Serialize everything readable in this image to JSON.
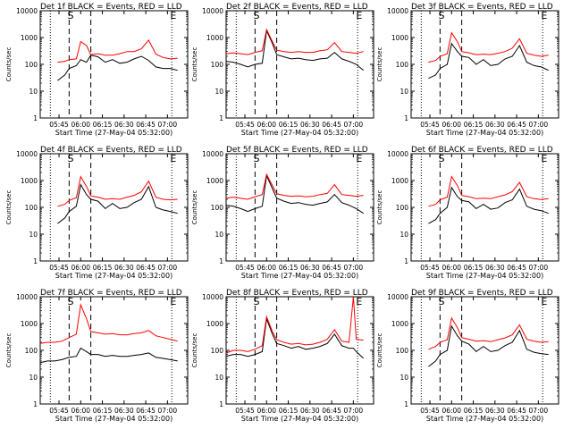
{
  "shared": {
    "ylabel": "Counts/sec",
    "xlabel": "Start Time (27-May-04 05:32:00)",
    "yticks": [
      {
        "value": 1,
        "label": "1"
      },
      {
        "value": 10,
        "label": "10"
      },
      {
        "value": 100,
        "label": "100"
      },
      {
        "value": 1000,
        "label": "1000"
      },
      {
        "value": 10000,
        "label": "10000"
      }
    ],
    "xticks": [
      {
        "value": 13,
        "label": "05:45"
      },
      {
        "value": 28,
        "label": "06:00"
      },
      {
        "value": 43,
        "label": "06:15"
      },
      {
        "value": 58,
        "label": "06:30"
      },
      {
        "value": 73,
        "label": "06:45"
      },
      {
        "value": 88,
        "label": "07:00"
      }
    ],
    "dotted_lines": [
      7,
      91
    ],
    "dashed_lines": [
      20,
      35
    ],
    "markers": [
      {
        "x": 21,
        "label": "S"
      },
      {
        "x": 92,
        "label": "E"
      }
    ],
    "colors": {
      "events": "#000000",
      "lld": "#ff0000",
      "axis": "#000000"
    }
  },
  "chart_data": [
    {
      "type": "line",
      "title": "Det 1f BLACK = Events, RED = LLD",
      "x_range_minutes": [
        0,
        102
      ],
      "ylim": [
        1,
        10000
      ],
      "yscale": "log",
      "x": [
        0,
        7,
        12,
        17,
        20,
        25,
        28,
        32,
        35,
        40,
        45,
        50,
        55,
        60,
        65,
        70,
        75,
        80,
        85,
        90,
        95
      ],
      "series": [
        {
          "name": "Events",
          "values": [
            null,
            null,
            25,
            40,
            70,
            90,
            150,
            120,
            220,
            190,
            120,
            150,
            110,
            120,
            160,
            200,
            140,
            80,
            70,
            70,
            60
          ]
        },
        {
          "name": "LLD",
          "values": [
            null,
            null,
            120,
            130,
            150,
            160,
            700,
            500,
            230,
            250,
            220,
            220,
            250,
            300,
            300,
            380,
            800,
            240,
            180,
            160,
            170
          ]
        }
      ]
    },
    {
      "type": "line",
      "title": "Det 2f BLACK = Events, RED = LLD",
      "x_range_minutes": [
        0,
        102
      ],
      "ylim": [
        1,
        10000
      ],
      "yscale": "log",
      "x": [
        0,
        5,
        10,
        15,
        20,
        25,
        28,
        32,
        35,
        40,
        45,
        50,
        55,
        60,
        65,
        70,
        75,
        80,
        85,
        90,
        95
      ],
      "series": [
        {
          "name": "Events",
          "values": [
            130,
            120,
            100,
            80,
            100,
            110,
            1800,
            600,
            230,
            190,
            160,
            170,
            150,
            140,
            160,
            170,
            280,
            160,
            130,
            100,
            60
          ]
        },
        {
          "name": "LLD",
          "values": [
            250,
            270,
            250,
            230,
            280,
            320,
            2000,
            700,
            340,
            300,
            280,
            300,
            280,
            280,
            320,
            350,
            650,
            300,
            280,
            260,
            300
          ]
        }
      ]
    },
    {
      "type": "line",
      "title": "Det 3f BLACK = Events, RED = LLD",
      "x_range_minutes": [
        0,
        102
      ],
      "ylim": [
        1,
        10000
      ],
      "yscale": "log",
      "x": [
        0,
        7,
        12,
        17,
        20,
        25,
        28,
        32,
        35,
        40,
        45,
        50,
        55,
        60,
        65,
        70,
        75,
        80,
        85,
        90,
        95
      ],
      "series": [
        {
          "name": "Events",
          "values": [
            null,
            null,
            30,
            40,
            70,
            100,
            600,
            300,
            200,
            180,
            100,
            150,
            90,
            100,
            160,
            200,
            500,
            120,
            90,
            80,
            60
          ]
        },
        {
          "name": "LLD",
          "values": [
            null,
            null,
            120,
            140,
            200,
            250,
            1500,
            700,
            300,
            270,
            230,
            240,
            230,
            260,
            300,
            400,
            900,
            260,
            220,
            200,
            220
          ]
        }
      ]
    },
    {
      "type": "line",
      "title": "Det 4f BLACK = Events, RED = LLD",
      "x_range_minutes": [
        0,
        102
      ],
      "ylim": [
        1,
        10000
      ],
      "yscale": "log",
      "x": [
        0,
        7,
        12,
        17,
        20,
        25,
        28,
        32,
        35,
        40,
        45,
        50,
        55,
        60,
        65,
        70,
        75,
        80,
        85,
        90,
        95
      ],
      "series": [
        {
          "name": "Events",
          "values": [
            null,
            null,
            25,
            40,
            70,
            110,
            700,
            300,
            200,
            170,
            90,
            140,
            90,
            100,
            150,
            200,
            600,
            100,
            80,
            70,
            60
          ]
        },
        {
          "name": "LLD",
          "values": [
            null,
            null,
            110,
            130,
            180,
            230,
            1400,
            600,
            270,
            240,
            200,
            210,
            200,
            240,
            280,
            380,
            950,
            240,
            200,
            190,
            200
          ]
        }
      ]
    },
    {
      "type": "line",
      "title": "Det 5f BLACK = Events, RED = LLD",
      "x_range_minutes": [
        0,
        102
      ],
      "ylim": [
        1,
        10000
      ],
      "yscale": "log",
      "x": [
        0,
        5,
        10,
        15,
        20,
        25,
        28,
        32,
        35,
        40,
        45,
        50,
        55,
        60,
        65,
        70,
        75,
        80,
        85,
        90,
        95
      ],
      "series": [
        {
          "name": "Events",
          "values": [
            120,
            110,
            90,
            70,
            90,
            110,
            1500,
            500,
            220,
            170,
            140,
            150,
            130,
            120,
            140,
            160,
            300,
            150,
            120,
            90,
            60
          ]
        },
        {
          "name": "LLD",
          "values": [
            220,
            240,
            220,
            200,
            250,
            300,
            1700,
            650,
            320,
            280,
            260,
            270,
            250,
            260,
            300,
            330,
            700,
            300,
            280,
            260,
            280
          ]
        }
      ]
    },
    {
      "type": "line",
      "title": "Det 6f BLACK = Events, RED = LLD",
      "x_range_minutes": [
        0,
        102
      ],
      "ylim": [
        1,
        10000
      ],
      "yscale": "log",
      "x": [
        0,
        7,
        12,
        17,
        20,
        25,
        28,
        32,
        35,
        40,
        45,
        50,
        55,
        60,
        65,
        70,
        75,
        80,
        85,
        90,
        95
      ],
      "series": [
        {
          "name": "Events",
          "values": [
            null,
            null,
            25,
            35,
            60,
            100,
            550,
            250,
            180,
            160,
            90,
            130,
            85,
            95,
            150,
            190,
            480,
            110,
            85,
            75,
            60
          ]
        },
        {
          "name": "LLD",
          "values": [
            null,
            null,
            110,
            130,
            190,
            240,
            1400,
            650,
            280,
            250,
            210,
            220,
            210,
            250,
            290,
            390,
            850,
            250,
            210,
            195,
            210
          ]
        }
      ]
    },
    {
      "type": "line",
      "title": "Det 7f BLACK = Events, RED = LLD",
      "x_range_minutes": [
        0,
        102
      ],
      "ylim": [
        1,
        10000
      ],
      "yscale": "log",
      "x": [
        0,
        5,
        10,
        15,
        20,
        25,
        28,
        32,
        35,
        40,
        45,
        50,
        55,
        60,
        65,
        70,
        75,
        80,
        85,
        90,
        95
      ],
      "series": [
        {
          "name": "Events",
          "values": [
            35,
            40,
            40,
            45,
            55,
            60,
            120,
            90,
            70,
            70,
            60,
            65,
            60,
            60,
            65,
            70,
            80,
            55,
            50,
            45,
            40
          ]
        },
        {
          "name": "LLD",
          "values": [
            180,
            200,
            200,
            220,
            300,
            400,
            5000,
            1500,
            500,
            450,
            400,
            420,
            380,
            380,
            420,
            450,
            550,
            350,
            300,
            260,
            220
          ]
        }
      ]
    },
    {
      "type": "line",
      "title": "Det 8f BLACK = Events, RED = LLD",
      "x_range_minutes": [
        0,
        102
      ],
      "ylim": [
        1,
        10000
      ],
      "yscale": "log",
      "x": [
        0,
        5,
        10,
        15,
        20,
        25,
        28,
        32,
        35,
        40,
        45,
        50,
        55,
        60,
        65,
        70,
        75,
        80,
        85,
        88,
        90,
        95
      ],
      "series": [
        {
          "name": "Events",
          "values": [
            60,
            70,
            70,
            60,
            70,
            90,
            1500,
            400,
            180,
            150,
            120,
            140,
            110,
            120,
            140,
            180,
            400,
            150,
            120,
            120,
            90,
            50
          ]
        },
        {
          "name": "LLD",
          "values": [
            80,
            100,
            100,
            90,
            110,
            150,
            1800,
            500,
            250,
            200,
            170,
            180,
            160,
            170,
            200,
            260,
            600,
            220,
            200,
            10000,
            260,
            240
          ]
        }
      ]
    },
    {
      "type": "line",
      "title": "Det 9f BLACK = Events, RED = LLD",
      "x_range_minutes": [
        0,
        102
      ],
      "ylim": [
        1,
        10000
      ],
      "yscale": "log",
      "x": [
        0,
        7,
        12,
        17,
        20,
        25,
        28,
        32,
        35,
        40,
        45,
        50,
        55,
        60,
        65,
        70,
        75,
        80,
        85,
        90,
        95
      ],
      "series": [
        {
          "name": "Events",
          "values": [
            null,
            null,
            25,
            40,
            70,
            100,
            800,
            350,
            220,
            170,
            90,
            140,
            90,
            100,
            150,
            200,
            550,
            110,
            85,
            75,
            70
          ]
        },
        {
          "name": "LLD",
          "values": [
            null,
            null,
            110,
            140,
            200,
            250,
            1600,
            700,
            300,
            260,
            220,
            230,
            210,
            250,
            290,
            380,
            900,
            260,
            220,
            200,
            210
          ]
        }
      ]
    }
  ]
}
